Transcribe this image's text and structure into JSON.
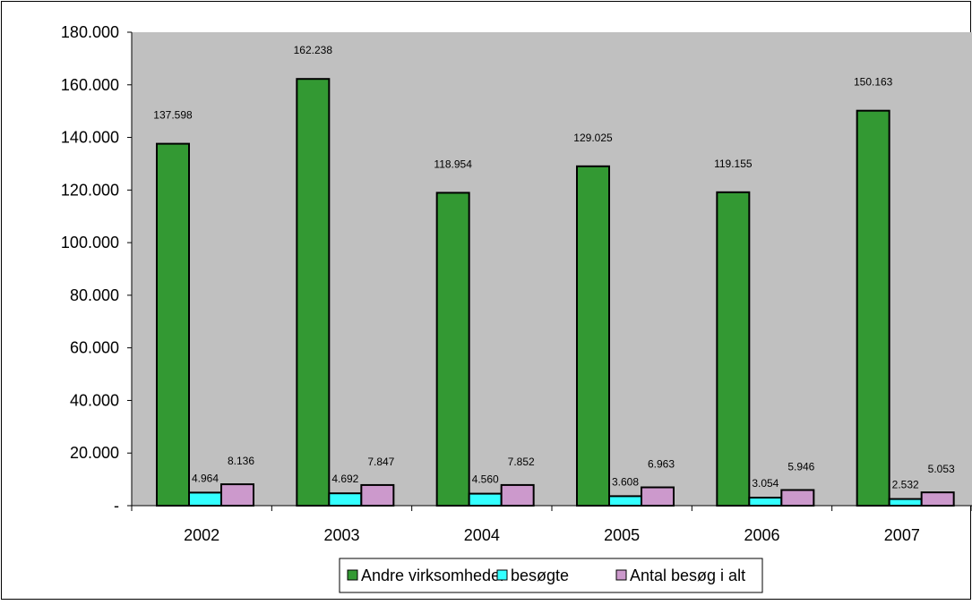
{
  "chart_data": {
    "type": "bar",
    "categories": [
      "2002",
      "2003",
      "2004",
      "2005",
      "2006",
      "2007"
    ],
    "series": [
      {
        "name": "Andre virksomheder",
        "color": "#339933",
        "values": [
          137598,
          162238,
          118954,
          129025,
          119155,
          150163
        ],
        "labels": [
          "137.598",
          "162.238",
          "118.954",
          "129.025",
          "119.155",
          "150.163"
        ]
      },
      {
        "name": "besøgte",
        "color": "#33FFFF",
        "values": [
          4964,
          4692,
          4560,
          3608,
          3054,
          2532
        ],
        "labels": [
          "4.964",
          "4.692",
          "4.560",
          "3.608",
          "3.054",
          "2.532"
        ]
      },
      {
        "name": "Antal besøg i alt",
        "color": "#CC99CC",
        "values": [
          8136,
          7847,
          7852,
          6963,
          5946,
          5053
        ],
        "labels": [
          "8.136",
          "7.847",
          "7.852",
          "6.963",
          "5.946",
          "5.053"
        ]
      }
    ],
    "ylim": [
      0,
      180000
    ],
    "yticks": [
      0,
      20000,
      40000,
      60000,
      80000,
      100000,
      120000,
      140000,
      160000,
      180000
    ],
    "ytick_labels": [
      "-",
      "20.000",
      "40.000",
      "60.000",
      "80.000",
      "100.000",
      "120.000",
      "140.000",
      "160.000",
      "180.000"
    ],
    "legend_position": "bottom",
    "plot_background": "#C0C0C0",
    "grid": false
  }
}
